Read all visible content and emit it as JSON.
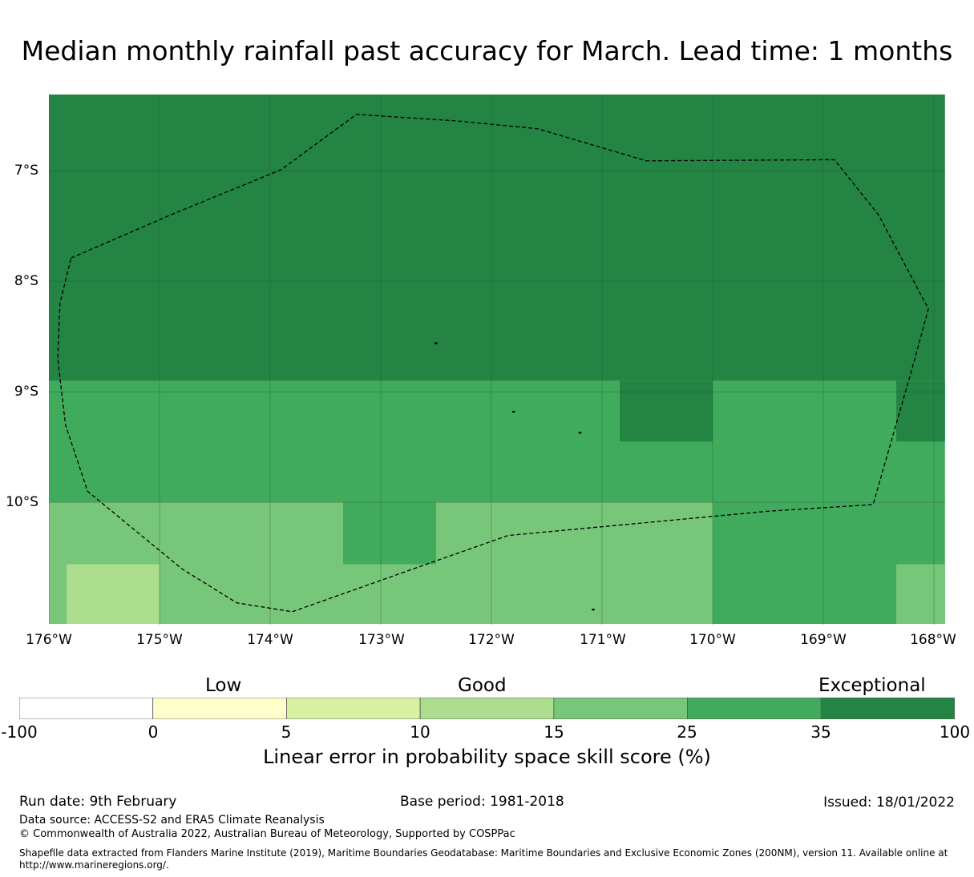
{
  "title": "Median monthly rainfall past accuracy for March. Lead time: 1 months",
  "map": {
    "lat_labels": [
      "7°S",
      "8°S",
      "9°S",
      "10°S"
    ],
    "lon_labels": [
      "176°W",
      "175°W",
      "174°W",
      "173°W",
      "172°W",
      "171°W",
      "170°W",
      "169°W",
      "168°W"
    ],
    "extent": {
      "lon_min": -176,
      "lon_max": -167.9,
      "lat_min": -11.1,
      "lat_max": -6.3
    },
    "grid_cells": [
      {
        "lon0": -176,
        "lon1": -167.9,
        "lat0": -8.9,
        "lat1": -6.3,
        "category": "35 to 100"
      },
      {
        "lon0": -176,
        "lon1": -167.9,
        "lat0": -10.0,
        "lat1": -8.9,
        "category": "25 to 35"
      },
      {
        "lon0": -170.84,
        "lon1": -170.0,
        "lat0": -9.45,
        "lat1": -8.9,
        "category": "35 to 100"
      },
      {
        "lon0": -168.34,
        "lon1": -167.9,
        "lat0": -9.45,
        "lat1": -8.9,
        "category": "35 to 100"
      },
      {
        "lon0": -176,
        "lon1": -170.0,
        "lat0": -11.1,
        "lat1": -10.0,
        "category": "15 to 25"
      },
      {
        "lon0": -173.34,
        "lon1": -172.5,
        "lat0": -10.56,
        "lat1": -10.0,
        "category": "25 to 35"
      },
      {
        "lon0": -175.84,
        "lon1": -175.0,
        "lat0": -11.1,
        "lat1": -10.56,
        "category": "10 to 15"
      },
      {
        "lon0": -170.0,
        "lon1": -167.9,
        "lat0": -11.1,
        "lat1": -10.0,
        "category": "25 to 35"
      },
      {
        "lon0": -168.34,
        "lon1": -167.9,
        "lat0": -11.1,
        "lat1": -10.56,
        "category": "15 to 25"
      }
    ],
    "eez_boundary": [
      [
        -175.8,
        -7.79
      ],
      [
        -174.9,
        -7.4
      ],
      [
        -173.9,
        -6.99
      ],
      [
        -173.22,
        -6.49
      ],
      [
        -172.3,
        -6.55
      ],
      [
        -171.58,
        -6.62
      ],
      [
        -170.6,
        -6.91
      ],
      [
        -168.9,
        -6.9
      ],
      [
        -168.5,
        -7.4
      ],
      [
        -168.05,
        -8.25
      ],
      [
        -168.2,
        -8.8
      ],
      [
        -168.55,
        -10.02
      ],
      [
        -169.5,
        -10.08
      ],
      [
        -171.85,
        -10.3
      ],
      [
        -172.7,
        -10.6
      ],
      [
        -173.8,
        -10.99
      ],
      [
        -174.3,
        -10.91
      ],
      [
        -174.8,
        -10.6
      ],
      [
        -175.65,
        -9.9
      ],
      [
        -175.85,
        -9.3
      ],
      [
        -175.92,
        -8.7
      ],
      [
        -175.9,
        -8.2
      ],
      [
        -175.8,
        -7.79
      ]
    ],
    "islands": [
      {
        "lon": -172.5,
        "lat": -8.56
      },
      {
        "lon": -171.8,
        "lat": -9.18
      },
      {
        "lon": -171.2,
        "lat": -9.37
      },
      {
        "lon": -171.08,
        "lat": -10.97
      }
    ]
  },
  "colorbar": {
    "band_labels": [
      "Low",
      "Good",
      "Exceptional"
    ],
    "ticks": [
      "-100",
      "0",
      "5",
      "10",
      "15",
      "25",
      "35",
      "100"
    ],
    "colors": [
      "#ffffff",
      "#ffffcc",
      "#d9f0a3",
      "#addd8e",
      "#78c679",
      "#41ab5d",
      "#238443"
    ],
    "label": "Linear error in probability space skill score (%)"
  },
  "footer": {
    "run_date": "Run date: 9th February",
    "base_period": "Base period: 1981-2018",
    "issued": "Issued: 18/01/2022",
    "data_source": "Data source: ACCESS-S2 and ERA5 Climate Reanalysis",
    "copyright": "© Commonwealth of Australia 2022, Australian Bureau of Meteorology, Supported by COSPPac",
    "shapefile_line1": "Shapefile data extracted from Flanders Marine Institute (2019), Maritime Boundaries Geodatabase: Maritime Boundaries and Exclusive Economic Zones (200NM), version 11. Available online at",
    "shapefile_line2": "http://www.marineregions.org/."
  }
}
